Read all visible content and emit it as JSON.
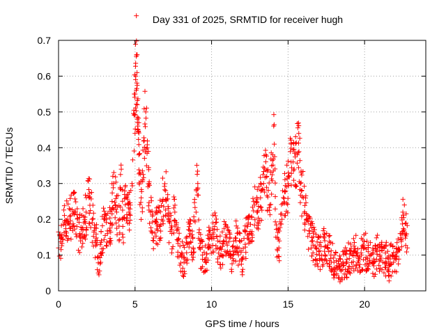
{
  "chart_data": {
    "type": "scatter",
    "title": "Day 331 of 2025, SRMTID for receiver hugh",
    "xlabel": "GPS time / hours",
    "ylabel": "SRMTID / TECUs",
    "xlim": [
      0,
      24
    ],
    "ylim": [
      0,
      0.7
    ],
    "xticks": [
      0,
      5,
      10,
      15,
      20
    ],
    "yticks": [
      0,
      0.1,
      0.2,
      0.3,
      0.4,
      0.5,
      0.6,
      0.7
    ],
    "grid": true,
    "marker": "+",
    "series": [
      {
        "name": "SRMTID",
        "color": "#ff0000",
        "x": [
          0.0,
          0.2,
          0.4,
          0.6,
          0.8,
          1.0,
          1.2,
          1.4,
          1.6,
          1.8,
          2.0,
          2.2,
          2.4,
          2.5,
          2.6,
          2.8,
          3.0,
          3.2,
          3.4,
          3.5,
          3.6,
          3.8,
          4.0,
          4.1,
          4.2,
          4.4,
          4.6,
          4.8,
          5.0,
          5.05,
          5.1,
          5.15,
          5.2,
          5.25,
          5.3,
          5.4,
          5.5,
          5.6,
          5.7,
          5.8,
          5.9,
          6.0,
          6.2,
          6.4,
          6.6,
          6.8,
          7.0,
          7.2,
          7.4,
          7.6,
          7.8,
          8.0,
          8.2,
          8.4,
          8.6,
          8.8,
          9.0,
          9.1,
          9.2,
          9.4,
          9.6,
          9.8,
          10.0,
          10.2,
          10.4,
          10.6,
          10.8,
          11.0,
          11.2,
          11.4,
          11.6,
          11.8,
          12.0,
          12.2,
          12.4,
          12.6,
          12.8,
          13.0,
          13.2,
          13.4,
          13.6,
          13.8,
          14.0,
          14.1,
          14.2,
          14.4,
          14.6,
          14.8,
          15.0,
          15.2,
          15.4,
          15.6,
          15.7,
          15.8,
          16.0,
          16.2,
          16.4,
          16.6,
          16.8,
          17.0,
          17.2,
          17.4,
          17.6,
          17.8,
          18.0,
          18.2,
          18.4,
          18.6,
          18.8,
          19.0,
          19.2,
          19.4,
          19.6,
          19.8,
          20.0,
          20.2,
          20.4,
          20.6,
          20.8,
          21.0,
          21.2,
          21.4,
          21.6,
          21.8,
          22.0,
          22.2,
          22.4,
          22.5,
          22.6,
          22.8
        ],
        "y": [
          0.12,
          0.15,
          0.19,
          0.2,
          0.21,
          0.22,
          0.18,
          0.16,
          0.17,
          0.22,
          0.26,
          0.2,
          0.14,
          0.13,
          0.05,
          0.14,
          0.2,
          0.16,
          0.19,
          0.25,
          0.3,
          0.22,
          0.2,
          0.34,
          0.18,
          0.26,
          0.22,
          0.3,
          0.55,
          0.6,
          0.66,
          0.52,
          0.45,
          0.38,
          0.33,
          0.26,
          0.31,
          0.42,
          0.5,
          0.4,
          0.3,
          0.22,
          0.14,
          0.2,
          0.18,
          0.25,
          0.28,
          0.2,
          0.16,
          0.22,
          0.14,
          0.1,
          0.08,
          0.13,
          0.16,
          0.12,
          0.28,
          0.3,
          0.12,
          0.1,
          0.08,
          0.13,
          0.15,
          0.18,
          0.12,
          0.1,
          0.14,
          0.15,
          0.11,
          0.1,
          0.14,
          0.12,
          0.09,
          0.13,
          0.2,
          0.16,
          0.24,
          0.22,
          0.26,
          0.3,
          0.32,
          0.24,
          0.38,
          0.41,
          0.15,
          0.12,
          0.2,
          0.28,
          0.3,
          0.36,
          0.34,
          0.38,
          0.44,
          0.3,
          0.26,
          0.2,
          0.16,
          0.14,
          0.12,
          0.11,
          0.1,
          0.14,
          0.12,
          0.1,
          0.08,
          0.07,
          0.06,
          0.07,
          0.08,
          0.09,
          0.1,
          0.11,
          0.09,
          0.1,
          0.12,
          0.09,
          0.1,
          0.07,
          0.11,
          0.1,
          0.08,
          0.09,
          0.07,
          0.1,
          0.09,
          0.12,
          0.16,
          0.22,
          0.24,
          0.12
        ]
      }
    ]
  }
}
